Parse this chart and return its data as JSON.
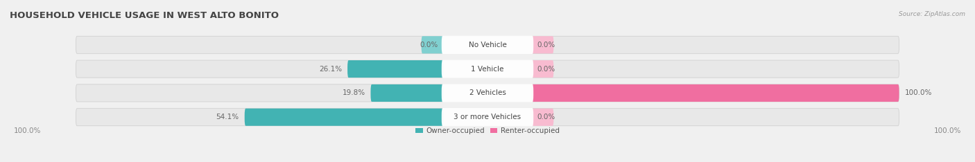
{
  "title": "HOUSEHOLD VEHICLE USAGE IN WEST ALTO BONITO",
  "source": "Source: ZipAtlas.com",
  "categories": [
    "No Vehicle",
    "1 Vehicle",
    "2 Vehicles",
    "3 or more Vehicles"
  ],
  "owner_values": [
    0.0,
    26.1,
    19.8,
    54.1
  ],
  "renter_values": [
    0.0,
    0.0,
    100.0,
    0.0
  ],
  "owner_color": "#42b3b3",
  "renter_color": "#f06ea0",
  "renter_color_light": "#f8bbd0",
  "bar_bg_color": "#e8e8e8",
  "bar_bg_outline": "#d0d0d0",
  "owner_label": "Owner-occupied",
  "renter_label": "Renter-occupied",
  "x_left_label": "100.0%",
  "x_right_label": "100.0%",
  "title_fontsize": 9.5,
  "label_fontsize": 7.5,
  "value_fontsize": 7.5,
  "tick_fontsize": 7.5,
  "figsize": [
    14.06,
    2.34
  ],
  "dpi": 100,
  "max_value": 100.0,
  "background_color": "#f0f0f0"
}
